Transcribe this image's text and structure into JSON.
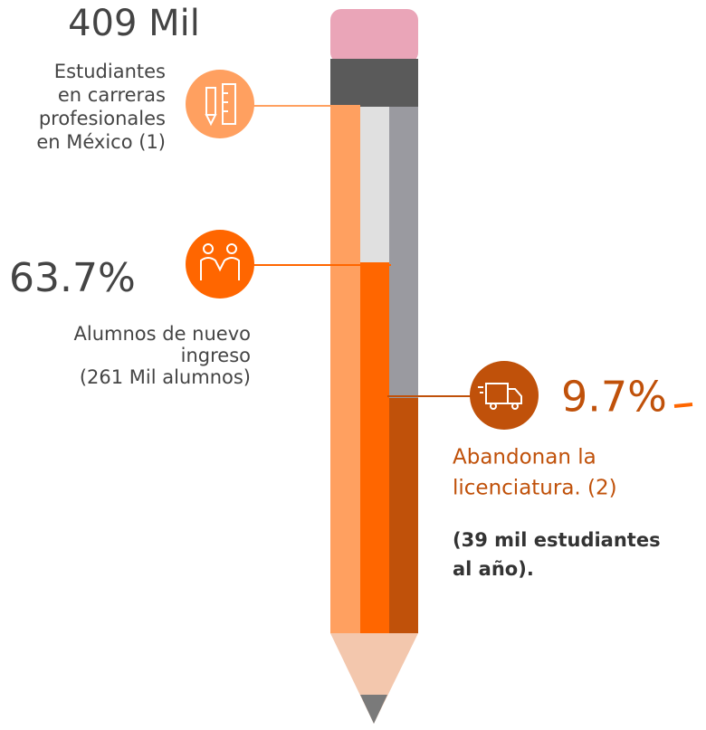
{
  "header": {
    "figure": "409 Mil",
    "description": [
      "Estudiantes",
      "en carreras",
      "profesionales",
      "en México (1)"
    ]
  },
  "new_students": {
    "figure": "63.7%",
    "description": [
      "Alumnos de nuevo",
      "ingreso",
      "(261 Mil alumnos)"
    ]
  },
  "dropout": {
    "figure": "9.7%",
    "description": [
      "Abandonan la",
      "licenciatura.  (2)"
    ],
    "note": [
      "(39 mil estudiantes",
      "al año)."
    ]
  }
}
